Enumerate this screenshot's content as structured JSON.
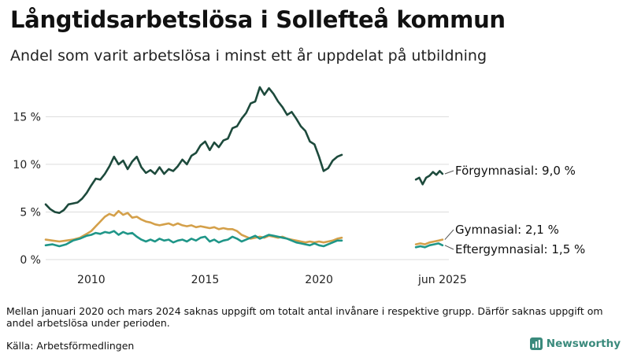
{
  "title": "Långtidsarbetslösa i Sollefteå kommun",
  "subtitle": "Andel som varit arbetslösa i minst ett år uppdelat på utbildning",
  "note": "Mellan januari 2020 och mars 2024 saknas uppgift om totalt antal invånare i respektive grupp. Därför saknas uppgift om andel arbetslösa under perioden.",
  "source": "Källa: Arbetsförmedlingen",
  "brand": {
    "name": "Newsworthy",
    "logo_icon": "bar-chart-logo-icon",
    "color": "#3a8a7c"
  },
  "chart_data": {
    "type": "line",
    "y_tick_labels": [
      "0 %",
      "5 %",
      "10 %",
      "15 %"
    ],
    "y_ticks": [
      0,
      5,
      10,
      15
    ],
    "ylim": [
      0,
      18.5
    ],
    "x_tick_labels": [
      "2010",
      "2015",
      "2020",
      "jun 2025"
    ],
    "x_ticks": [
      2010,
      2015,
      2020,
      2025.42
    ],
    "grid": true,
    "legend": "direct labels at line ends",
    "series": [
      {
        "name": "Förgymnasial",
        "end_label": "Förgymnasial: 9,0 %",
        "color": "#1d4a3c",
        "segments": [
          [
            [
              2008.0,
              5.8
            ],
            [
              2008.2,
              5.3
            ],
            [
              2008.4,
              5.0
            ],
            [
              2008.6,
              4.9
            ],
            [
              2008.8,
              5.2
            ],
            [
              2009.0,
              5.8
            ],
            [
              2009.2,
              5.9
            ],
            [
              2009.4,
              6.0
            ],
            [
              2009.6,
              6.4
            ],
            [
              2009.8,
              7.0
            ],
            [
              2010.0,
              7.8
            ],
            [
              2010.2,
              8.5
            ],
            [
              2010.4,
              8.4
            ],
            [
              2010.6,
              9.0
            ],
            [
              2010.8,
              9.8
            ],
            [
              2011.0,
              10.8
            ],
            [
              2011.2,
              10.0
            ],
            [
              2011.4,
              10.4
            ],
            [
              2011.6,
              9.5
            ],
            [
              2011.8,
              10.3
            ],
            [
              2012.0,
              10.8
            ],
            [
              2012.2,
              9.7
            ],
            [
              2012.4,
              9.1
            ],
            [
              2012.6,
              9.4
            ],
            [
              2012.8,
              9.0
            ],
            [
              2013.0,
              9.7
            ],
            [
              2013.2,
              9.0
            ],
            [
              2013.4,
              9.5
            ],
            [
              2013.6,
              9.3
            ],
            [
              2013.8,
              9.8
            ],
            [
              2014.0,
              10.5
            ],
            [
              2014.2,
              10.0
            ],
            [
              2014.4,
              10.9
            ],
            [
              2014.6,
              11.2
            ],
            [
              2014.8,
              12.0
            ],
            [
              2015.0,
              12.4
            ],
            [
              2015.2,
              11.5
            ],
            [
              2015.4,
              12.3
            ],
            [
              2015.6,
              11.8
            ],
            [
              2015.8,
              12.5
            ],
            [
              2016.0,
              12.7
            ],
            [
              2016.2,
              13.8
            ],
            [
              2016.4,
              14.0
            ],
            [
              2016.6,
              14.8
            ],
            [
              2016.8,
              15.4
            ],
            [
              2017.0,
              16.4
            ],
            [
              2017.2,
              16.6
            ],
            [
              2017.4,
              18.1
            ],
            [
              2017.6,
              17.3
            ],
            [
              2017.8,
              18.0
            ],
            [
              2018.0,
              17.4
            ],
            [
              2018.2,
              16.6
            ],
            [
              2018.4,
              16.0
            ],
            [
              2018.6,
              15.2
            ],
            [
              2018.8,
              15.5
            ],
            [
              2019.0,
              14.8
            ],
            [
              2019.2,
              14.0
            ],
            [
              2019.4,
              13.5
            ],
            [
              2019.6,
              12.4
            ],
            [
              2019.8,
              12.1
            ],
            [
              2020.0,
              10.8
            ],
            [
              2020.2,
              9.3
            ],
            [
              2020.4,
              9.6
            ],
            [
              2020.6,
              10.4
            ],
            [
              2020.8,
              10.8
            ],
            [
              2021.0,
              11.0
            ]
          ],
          [
            [
              2024.25,
              8.4
            ],
            [
              2024.4,
              8.6
            ],
            [
              2024.55,
              7.9
            ],
            [
              2024.7,
              8.6
            ],
            [
              2024.85,
              8.8
            ],
            [
              2025.0,
              9.2
            ],
            [
              2025.15,
              8.9
            ],
            [
              2025.3,
              9.3
            ],
            [
              2025.42,
              9.0
            ]
          ]
        ]
      },
      {
        "name": "Gymnasial",
        "end_label": "Gymnasial: 2,1 %",
        "color": "#d4a04a",
        "segments": [
          [
            [
              2008.0,
              2.1
            ],
            [
              2008.3,
              2.0
            ],
            [
              2008.6,
              1.9
            ],
            [
              2008.9,
              2.0
            ],
            [
              2009.2,
              2.1
            ],
            [
              2009.5,
              2.3
            ],
            [
              2009.8,
              2.7
            ],
            [
              2010.0,
              3.0
            ],
            [
              2010.2,
              3.5
            ],
            [
              2010.4,
              4.0
            ],
            [
              2010.6,
              4.5
            ],
            [
              2010.8,
              4.8
            ],
            [
              2011.0,
              4.6
            ],
            [
              2011.2,
              5.1
            ],
            [
              2011.4,
              4.7
            ],
            [
              2011.6,
              4.9
            ],
            [
              2011.8,
              4.4
            ],
            [
              2012.0,
              4.5
            ],
            [
              2012.2,
              4.2
            ],
            [
              2012.4,
              4.0
            ],
            [
              2012.6,
              3.9
            ],
            [
              2012.8,
              3.7
            ],
            [
              2013.0,
              3.6
            ],
            [
              2013.2,
              3.7
            ],
            [
              2013.4,
              3.8
            ],
            [
              2013.6,
              3.6
            ],
            [
              2013.8,
              3.8
            ],
            [
              2014.0,
              3.6
            ],
            [
              2014.2,
              3.5
            ],
            [
              2014.4,
              3.6
            ],
            [
              2014.6,
              3.4
            ],
            [
              2014.8,
              3.5
            ],
            [
              2015.0,
              3.4
            ],
            [
              2015.2,
              3.3
            ],
            [
              2015.4,
              3.4
            ],
            [
              2015.6,
              3.2
            ],
            [
              2015.8,
              3.3
            ],
            [
              2016.0,
              3.2
            ],
            [
              2016.2,
              3.2
            ],
            [
              2016.4,
              3.0
            ],
            [
              2016.6,
              2.6
            ],
            [
              2016.8,
              2.4
            ],
            [
              2017.0,
              2.2
            ],
            [
              2017.2,
              2.3
            ],
            [
              2017.4,
              2.4
            ],
            [
              2017.6,
              2.3
            ],
            [
              2017.8,
              2.5
            ],
            [
              2018.0,
              2.4
            ],
            [
              2018.2,
              2.3
            ],
            [
              2018.4,
              2.4
            ],
            [
              2018.6,
              2.2
            ],
            [
              2018.8,
              2.1
            ],
            [
              2019.0,
              2.0
            ],
            [
              2019.2,
              1.9
            ],
            [
              2019.4,
              1.8
            ],
            [
              2019.6,
              1.9
            ],
            [
              2019.8,
              1.8
            ],
            [
              2020.0,
              1.9
            ],
            [
              2020.2,
              1.8
            ],
            [
              2020.4,
              1.9
            ],
            [
              2020.6,
              2.0
            ],
            [
              2020.8,
              2.2
            ],
            [
              2021.0,
              2.3
            ]
          ],
          [
            [
              2024.25,
              1.6
            ],
            [
              2024.45,
              1.7
            ],
            [
              2024.65,
              1.6
            ],
            [
              2024.85,
              1.8
            ],
            [
              2025.05,
              1.9
            ],
            [
              2025.25,
              2.0
            ],
            [
              2025.42,
              2.1
            ]
          ]
        ]
      },
      {
        "name": "Eftergymnasial",
        "end_label": "Eftergymnasial: 1,5 %",
        "color": "#1f9688",
        "segments": [
          [
            [
              2008.0,
              1.5
            ],
            [
              2008.3,
              1.6
            ],
            [
              2008.6,
              1.4
            ],
            [
              2008.9,
              1.6
            ],
            [
              2009.2,
              2.0
            ],
            [
              2009.5,
              2.2
            ],
            [
              2009.8,
              2.5
            ],
            [
              2010.0,
              2.6
            ],
            [
              2010.2,
              2.8
            ],
            [
              2010.4,
              2.7
            ],
            [
              2010.6,
              2.9
            ],
            [
              2010.8,
              2.8
            ],
            [
              2011.0,
              3.0
            ],
            [
              2011.2,
              2.6
            ],
            [
              2011.4,
              2.9
            ],
            [
              2011.6,
              2.7
            ],
            [
              2011.8,
              2.8
            ],
            [
              2012.0,
              2.4
            ],
            [
              2012.2,
              2.1
            ],
            [
              2012.4,
              1.9
            ],
            [
              2012.6,
              2.1
            ],
            [
              2012.8,
              1.9
            ],
            [
              2013.0,
              2.2
            ],
            [
              2013.2,
              2.0
            ],
            [
              2013.4,
              2.1
            ],
            [
              2013.6,
              1.8
            ],
            [
              2013.8,
              2.0
            ],
            [
              2014.0,
              2.1
            ],
            [
              2014.2,
              1.9
            ],
            [
              2014.4,
              2.2
            ],
            [
              2014.6,
              2.0
            ],
            [
              2014.8,
              2.3
            ],
            [
              2015.0,
              2.4
            ],
            [
              2015.2,
              1.9
            ],
            [
              2015.4,
              2.1
            ],
            [
              2015.6,
              1.8
            ],
            [
              2015.8,
              2.0
            ],
            [
              2016.0,
              2.1
            ],
            [
              2016.2,
              2.4
            ],
            [
              2016.4,
              2.2
            ],
            [
              2016.6,
              1.9
            ],
            [
              2016.8,
              2.1
            ],
            [
              2017.0,
              2.3
            ],
            [
              2017.2,
              2.5
            ],
            [
              2017.4,
              2.2
            ],
            [
              2017.6,
              2.4
            ],
            [
              2017.8,
              2.6
            ],
            [
              2018.0,
              2.5
            ],
            [
              2018.2,
              2.4
            ],
            [
              2018.4,
              2.3
            ],
            [
              2018.6,
              2.2
            ],
            [
              2018.8,
              2.0
            ],
            [
              2019.0,
              1.8
            ],
            [
              2019.2,
              1.7
            ],
            [
              2019.4,
              1.6
            ],
            [
              2019.6,
              1.5
            ],
            [
              2019.8,
              1.7
            ],
            [
              2020.0,
              1.5
            ],
            [
              2020.2,
              1.4
            ],
            [
              2020.4,
              1.6
            ],
            [
              2020.6,
              1.8
            ],
            [
              2020.8,
              2.0
            ],
            [
              2021.0,
              2.0
            ]
          ],
          [
            [
              2024.25,
              1.3
            ],
            [
              2024.45,
              1.4
            ],
            [
              2024.65,
              1.3
            ],
            [
              2024.85,
              1.5
            ],
            [
              2025.05,
              1.6
            ],
            [
              2025.25,
              1.7
            ],
            [
              2025.42,
              1.5
            ]
          ]
        ]
      }
    ]
  }
}
